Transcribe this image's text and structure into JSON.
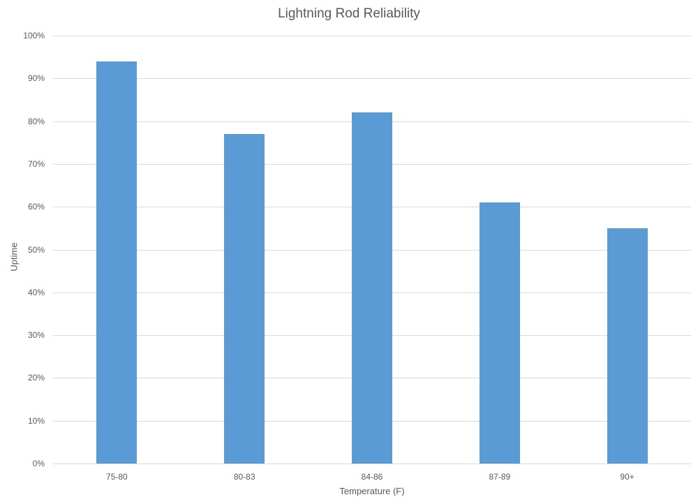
{
  "chart_data": {
    "type": "bar",
    "title": "Lightning Rod Reliability",
    "xlabel": "Temperature (F)",
    "ylabel": "Uptime",
    "categories": [
      "75-80",
      "80-83",
      "84-86",
      "87-89",
      "90+"
    ],
    "values": [
      94,
      77,
      82,
      61,
      55
    ],
    "value_format": "percent",
    "ylim": [
      0,
      100
    ],
    "yticks": [
      "0%",
      "10%",
      "20%",
      "30%",
      "40%",
      "50%",
      "60%",
      "70%",
      "80%",
      "90%",
      "100%"
    ],
    "grid": true,
    "legend": null,
    "bar_color": "#5B9BD5"
  }
}
